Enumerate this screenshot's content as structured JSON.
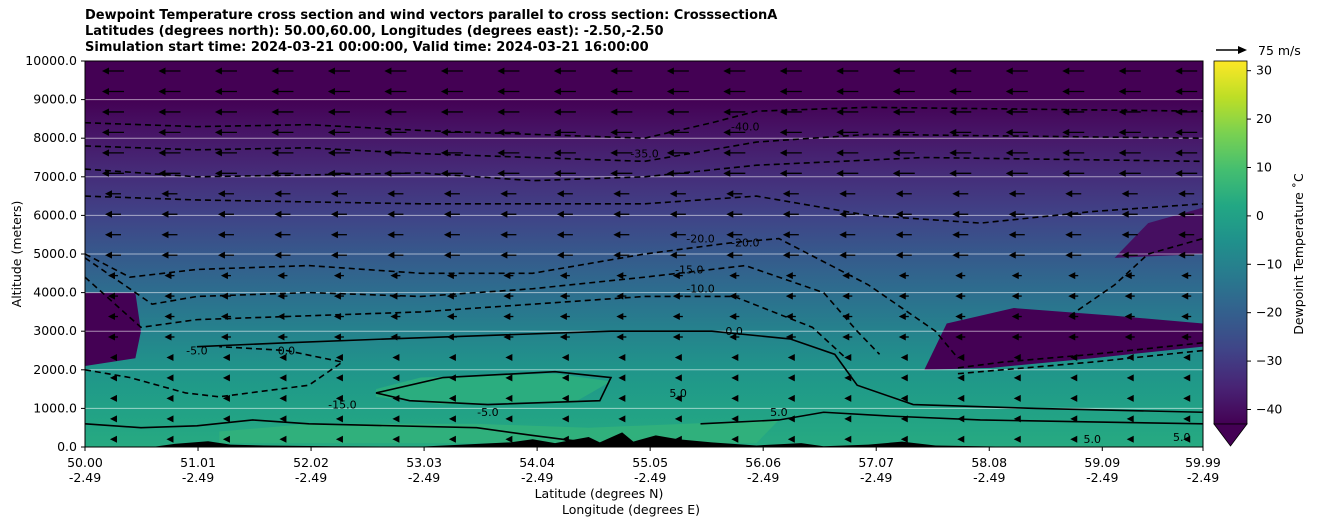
{
  "chart_data": {
    "type": "heatmap",
    "title_lines": [
      "Dewpoint Temperature cross section and wind vectors parallel to cross section: CrosssectionA",
      "Latitudes (degrees north): 50.00,60.00, Longitudes (degrees east): -2.50,-2.50",
      "Simulation start time: 2024-03-21 00:00:00, Valid time: 2024-03-21 16:00:00"
    ],
    "xlabel": "Latitude (degrees N)",
    "xlabel2": "Longitude (degrees E)",
    "ylabel": "Altitude (meters)",
    "xlim": [
      50.0,
      59.99
    ],
    "ylim": [
      0,
      10000
    ],
    "x_ticks": [
      {
        "lat": "50.00",
        "lon": "-2.49",
        "v": 50.0
      },
      {
        "lat": "51.01",
        "lon": "-2.49",
        "v": 51.01
      },
      {
        "lat": "52.02",
        "lon": "-2.49",
        "v": 52.02
      },
      {
        "lat": "53.03",
        "lon": "-2.49",
        "v": 53.03
      },
      {
        "lat": "54.04",
        "lon": "-2.49",
        "v": 54.04
      },
      {
        "lat": "55.05",
        "lon": "-2.49",
        "v": 55.05
      },
      {
        "lat": "56.06",
        "lon": "-2.49",
        "v": 56.06
      },
      {
        "lat": "57.07",
        "lon": "-2.49",
        "v": 57.07
      },
      {
        "lat": "58.08",
        "lon": "-2.49",
        "v": 58.08
      },
      {
        "lat": "59.09",
        "lon": "-2.49",
        "v": 59.09
      },
      {
        "lat": "59.99",
        "lon": "-2.49",
        "v": 59.99
      }
    ],
    "y_ticks": [
      {
        "label": "0.0",
        "v": 0
      },
      {
        "label": "1000.0",
        "v": 1000
      },
      {
        "label": "2000.0",
        "v": 2000
      },
      {
        "label": "3000.0",
        "v": 3000
      },
      {
        "label": "4000.0",
        "v": 4000
      },
      {
        "label": "5000.0",
        "v": 5000
      },
      {
        "label": "6000.0",
        "v": 6000
      },
      {
        "label": "7000.0",
        "v": 7000
      },
      {
        "label": "8000.0",
        "v": 8000
      },
      {
        "label": "9000.0",
        "v": 9000
      },
      {
        "label": "10000.0",
        "v": 10000
      }
    ],
    "grid": true,
    "colorbar": {
      "label": "Dewpoint Temperature ˚C",
      "range": [
        -43,
        32
      ],
      "extend": "min",
      "ticks": [
        {
          "label": "−40",
          "v": -40
        },
        {
          "label": "−30",
          "v": -30
        },
        {
          "label": "−20",
          "v": -20
        },
        {
          "label": "−10",
          "v": -10
        },
        {
          "label": "0",
          "v": 0
        },
        {
          "label": "10",
          "v": 10
        },
        {
          "label": "20",
          "v": 20
        },
        {
          "label": "30",
          "v": 30
        }
      ],
      "colormap": "viridis"
    },
    "wind_key": {
      "label": "75 m/s",
      "speed": 75
    },
    "wind_direction": "leftward (parallel to section, toward lower latitude)",
    "dewpoint_profile_c": [
      {
        "altitude": 0,
        "value": 3
      },
      {
        "altitude": 1000,
        "value": 0
      },
      {
        "altitude": 2000,
        "value": -4
      },
      {
        "altitude": 3000,
        "value": -10
      },
      {
        "altitude": 4000,
        "value": -16
      },
      {
        "altitude": 5000,
        "value": -22
      },
      {
        "altitude": 6000,
        "value": -28
      },
      {
        "altitude": 7000,
        "value": -33
      },
      {
        "altitude": 8000,
        "value": -38
      },
      {
        "altitude": 9000,
        "value": -43
      },
      {
        "altitude": 10000,
        "value": -43
      }
    ],
    "contour_labels": [
      {
        "text": "-40.0",
        "x": 55.9,
        "y": 8200
      },
      {
        "text": "-35.0",
        "x": 55.0,
        "y": 7500
      },
      {
        "text": "-20.0",
        "x": 55.5,
        "y": 5300
      },
      {
        "text": "-20.0",
        "x": 55.9,
        "y": 5200
      },
      {
        "text": "-15.0",
        "x": 55.4,
        "y": 4500
      },
      {
        "text": "-10.0",
        "x": 55.5,
        "y": 4000
      },
      {
        "text": "0.0",
        "x": 55.8,
        "y": 2900
      },
      {
        "text": "-5.0",
        "x": 51.0,
        "y": 2400
      },
      {
        "text": "0.0",
        "x": 51.8,
        "y": 2400
      },
      {
        "text": "-15.0",
        "x": 52.3,
        "y": 1000
      },
      {
        "text": "-5.0",
        "x": 53.6,
        "y": 800
      },
      {
        "text": "5.0",
        "x": 55.3,
        "y": 1300
      },
      {
        "text": "5.0",
        "x": 56.2,
        "y": 800
      },
      {
        "text": "5.0",
        "x": 59.0,
        "y": 100
      },
      {
        "text": "5.0",
        "x": 59.8,
        "y": 150
      }
    ]
  }
}
